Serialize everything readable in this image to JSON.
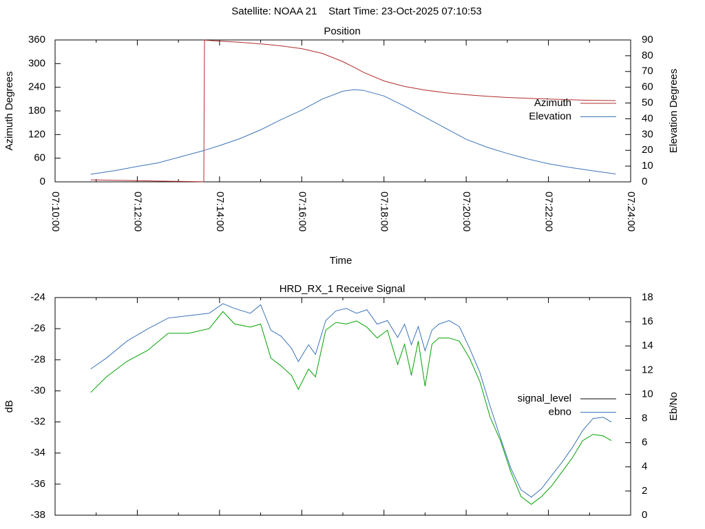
{
  "header": "Satellite: NOAA 21    Start Time: 23-Oct-2025 07:10:53",
  "chart_data": [
    {
      "type": "line",
      "title": "Position",
      "xlabel": "Time",
      "ylabel": "Azimuth Degrees",
      "y2label": "Elevation Degrees",
      "xlim": [
        "07:10:00",
        "07:24:00"
      ],
      "xticks": [
        "07:10:00",
        "07:12:00",
        "07:14:00",
        "07:16:00",
        "07:18:00",
        "07:20:00",
        "07:22:00",
        "07:24:00"
      ],
      "xminor": 2,
      "xtick_labels": true,
      "ylim": [
        0,
        360
      ],
      "yticks": [
        0,
        60,
        120,
        180,
        240,
        300,
        360
      ],
      "y2lim": [
        0,
        90
      ],
      "y2ticks": [
        0,
        10,
        20,
        30,
        40,
        50,
        60,
        70,
        80,
        90
      ],
      "legend": "right",
      "x": [
        "07:10:52",
        "07:11:30",
        "07:12:00",
        "07:12:30",
        "07:13:00",
        "07:13:30",
        "07:13:37",
        "07:13:38",
        "07:14:00",
        "07:14:30",
        "07:15:00",
        "07:15:30",
        "07:16:00",
        "07:16:30",
        "07:17:00",
        "07:17:17",
        "07:17:30",
        "07:18:00",
        "07:18:30",
        "07:19:00",
        "07:19:30",
        "07:20:00",
        "07:20:30",
        "07:21:00",
        "07:21:30",
        "07:22:00",
        "07:22:30",
        "07:23:00",
        "07:23:38"
      ],
      "series": [
        {
          "name": "Azimuth",
          "color": "#b02a2a",
          "axis": "y",
          "values": [
            5.0,
            3.9,
            2.9,
            2.0,
            1.2,
            0.3,
            0.1,
            359.5,
            357,
            354,
            350,
            345,
            338,
            326,
            305,
            290,
            278,
            256,
            242,
            233,
            226,
            221,
            217,
            214,
            212,
            210,
            208.5,
            207,
            206
          ]
        },
        {
          "name": "Elevation",
          "color": "#3a72b8",
          "axis": "y2",
          "values": [
            4.8,
            7.3,
            9.8,
            12.0,
            15.5,
            19,
            19.9,
            20,
            23,
            27.5,
            33,
            39.5,
            45.5,
            52.5,
            57.5,
            58.5,
            58,
            54.5,
            48,
            41,
            34,
            27,
            22,
            18,
            14.5,
            11.5,
            9.2,
            7.3,
            5
          ]
        }
      ]
    },
    {
      "type": "line",
      "title": "HRD_RX_1 Receive Signal",
      "ylabel": "dB",
      "y2label": "Eb/No",
      "xlim": [
        "07:10:00",
        "07:24:00"
      ],
      "xticks": [
        "07:10:00",
        "07:12:00",
        "07:14:00",
        "07:16:00",
        "07:18:00",
        "07:20:00",
        "07:22:00",
        "07:24:00"
      ],
      "xminor": 2,
      "xtick_labels": false,
      "ylim": [
        -38,
        -24
      ],
      "yticks": [
        -38,
        -36,
        -34,
        -32,
        -30,
        -28,
        -26,
        -24
      ],
      "y2lim": [
        0,
        18
      ],
      "y2ticks": [
        0,
        2,
        4,
        6,
        8,
        10,
        12,
        14,
        16,
        18
      ],
      "legend": "right",
      "x": [
        "07:10:52",
        "07:11:15",
        "07:11:45",
        "07:12:15",
        "07:12:45",
        "07:13:15",
        "07:13:45",
        "07:14:05",
        "07:14:22",
        "07:14:45",
        "07:15:00",
        "07:15:15",
        "07:15:30",
        "07:15:45",
        "07:15:55",
        "07:16:10",
        "07:16:20",
        "07:16:35",
        "07:16:50",
        "07:17:05",
        "07:17:20",
        "07:17:35",
        "07:17:50",
        "07:18:05",
        "07:18:20",
        "07:18:30",
        "07:18:40",
        "07:18:50",
        "07:19:00",
        "07:19:10",
        "07:19:20",
        "07:19:35",
        "07:19:50",
        "07:20:05",
        "07:20:20",
        "07:20:35",
        "07:20:50",
        "07:21:05",
        "07:21:20",
        "07:21:35",
        "07:21:50",
        "07:22:05",
        "07:22:20",
        "07:22:35",
        "07:22:50",
        "07:23:05",
        "07:23:20",
        "07:23:32"
      ],
      "series": [
        {
          "name": "signal_level",
          "color": "#00a000",
          "legend_color": "#000000",
          "axis": "y",
          "values": [
            -30.1,
            -29.1,
            -28.1,
            -27.4,
            -26.3,
            -26.3,
            -26.0,
            -24.9,
            -25.7,
            -25.9,
            -25.7,
            -27.9,
            -28.4,
            -29.0,
            -29.9,
            -28.6,
            -29.1,
            -26.1,
            -25.6,
            -25.7,
            -25.5,
            -25.9,
            -26.6,
            -26.1,
            -28.3,
            -27.0,
            -29.0,
            -26.8,
            -29.7,
            -27.0,
            -26.6,
            -26.6,
            -26.8,
            -27.9,
            -29.4,
            -31.7,
            -33.2,
            -35.2,
            -36.8,
            -37.3,
            -36.8,
            -36.1,
            -35.2,
            -34.3,
            -33.2,
            -32.8,
            -32.9,
            -33.2
          ]
        },
        {
          "name": "ebno",
          "color": "#3a72b8",
          "legend_color": "#3a72b8",
          "axis": "y2",
          "values": [
            12.1,
            13.0,
            14.4,
            15.4,
            16.3,
            16.5,
            16.7,
            17.5,
            17.1,
            16.7,
            17.4,
            15.3,
            14.8,
            13.8,
            12.7,
            14.1,
            13.3,
            16.1,
            16.9,
            17.1,
            16.7,
            17.0,
            15.8,
            16.1,
            14.7,
            15.8,
            14.1,
            15.6,
            13.6,
            15.3,
            15.8,
            16.1,
            15.6,
            13.8,
            11.8,
            9.0,
            6.4,
            3.9,
            2.1,
            1.5,
            2.2,
            3.3,
            4.4,
            5.6,
            7.0,
            8.0,
            8.1,
            7.7
          ]
        }
      ]
    }
  ]
}
